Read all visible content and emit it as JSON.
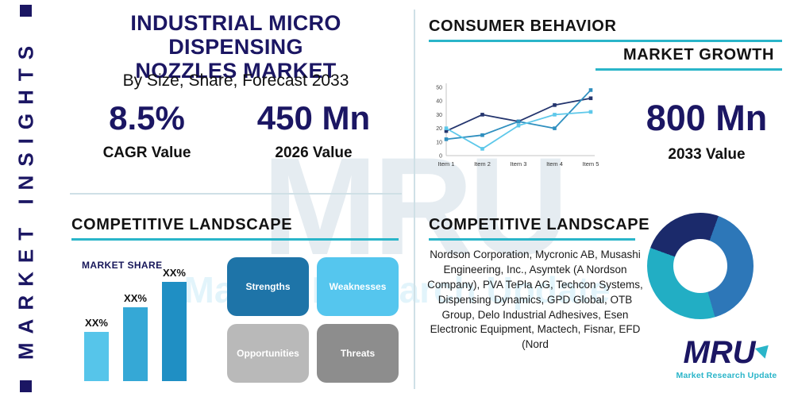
{
  "sidebar": {
    "label": "MARKET INSIGHTS"
  },
  "header": {
    "title_line1": "INDUSTRIAL MICRO DISPENSING",
    "title_line2": "NOZZLES MARKET",
    "subtitle": "By Size, Share, Forecast 2033"
  },
  "stats": {
    "cagr": {
      "value": "8.5%",
      "label": "CAGR Value"
    },
    "v2026": {
      "value": "450 Mn",
      "label": "2026 Value"
    },
    "v2033": {
      "value": "800 Mn",
      "label": "2033 Value"
    }
  },
  "sections": {
    "consumer_behavior": "CONSUMER BEHAVIOR",
    "market_growth": "MARKET GROWTH",
    "competitive_landscape_left": "COMPETITIVE LANDSCAPE",
    "competitive_landscape_right": "COMPETITIVE LANDSCAPE",
    "market_share": "MARKET SHARE"
  },
  "swot": [
    {
      "label": "Strengths",
      "color": "#1e74a8"
    },
    {
      "label": "Weaknesses",
      "color": "#55c6ee"
    },
    {
      "label": "Opportunities",
      "color": "#b9b9b9"
    },
    {
      "label": "Threats",
      "color": "#8d8d8d"
    }
  ],
  "companies": "Nordson Corporation, Mycronic AB, Musashi Engineering, Inc., Asymtek (A Nordson Company), PVA TePla AG, Techcon Systems, Dispensing Dynamics, GPD Global, OTB Group, Delo Industrial Adhesives, Esen Electronic Equipment, Mactech, Fisnar, EFD (Nord",
  "logo": {
    "text": "MRU",
    "tagline": "Market Research Update"
  },
  "watermark": {
    "big": "MRU",
    "small": "Market Research Update"
  },
  "colors": {
    "navy": "#1b1663",
    "teal": "#2ab5c9"
  },
  "chart_data": [
    {
      "type": "line",
      "title": "MARKET GROWTH",
      "categories": [
        "Item 1",
        "Item 2",
        "Item 3",
        "Item 4",
        "Item 5"
      ],
      "series": [
        {
          "name": "series-1",
          "color": "#24356e",
          "values": [
            18,
            30,
            25,
            37,
            42
          ]
        },
        {
          "name": "series-2",
          "color": "#2f8fbf",
          "values": [
            12,
            15,
            25,
            20,
            48
          ]
        },
        {
          "name": "series-3",
          "color": "#5ec8ea",
          "values": [
            20,
            5,
            22,
            30,
            32
          ]
        }
      ],
      "ylim": [
        0,
        50
      ],
      "yticks": [
        0,
        10,
        20,
        30,
        40,
        50
      ],
      "legend": "none",
      "grid": false
    },
    {
      "type": "bar",
      "title": "MARKET SHARE",
      "categories": [
        "XX%",
        "XX%",
        "XX%"
      ],
      "values": [
        30,
        45,
        60
      ],
      "colors": [
        "#56c5ea",
        "#35a8d6",
        "#1f8fc4"
      ],
      "ylim": [
        0,
        65
      ]
    },
    {
      "type": "donut",
      "segments": [
        {
          "name": "segment-1",
          "value": 25,
          "color": "#1b2a6b"
        },
        {
          "name": "segment-2",
          "value": 40,
          "color": "#2d77b8"
        },
        {
          "name": "segment-3",
          "value": 35,
          "color": "#22aec4"
        }
      ]
    }
  ]
}
